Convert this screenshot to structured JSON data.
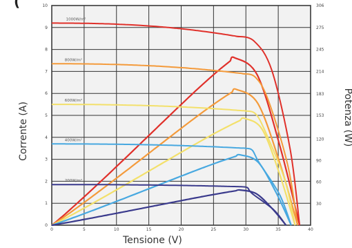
{
  "chart_data": {
    "type": "line",
    "title_fragment": "(",
    "xlabel": "Tensione (V)",
    "ylabel": "Corrente (A)",
    "y2label": "Potenza (W)",
    "xlim": [
      0,
      40
    ],
    "ylim": [
      0,
      10
    ],
    "y2lim": [
      0,
      306
    ],
    "x_ticks": [
      "0",
      "5",
      "10",
      "15",
      "20",
      "25",
      "30",
      "35",
      "40"
    ],
    "x_tick_values": [
      0,
      5,
      10,
      15,
      20,
      25,
      30,
      35,
      40
    ],
    "y_ticks": [
      "0",
      "1",
      "2",
      "3",
      "4",
      "5",
      "6",
      "7",
      "8",
      "9",
      "10"
    ],
    "y2_ticks": [
      "30",
      "60",
      "90",
      "120",
      "153",
      "183",
      "214",
      "245",
      "275",
      "306"
    ],
    "grid": true,
    "irradiance_labels": [
      "1000W/m²",
      "800W/m²",
      "600W/m²",
      "400W/m²",
      "200W/m²"
    ],
    "series": [
      {
        "label_index": 0,
        "color": "#e0302a",
        "isc": 9.2,
        "ix": 28.5,
        "im": 8.6,
        "vx": 34.0,
        "voc": 38.3,
        "pmax": 243
      },
      {
        "label_index": 1,
        "color": "#f49a3a",
        "isc": 7.35,
        "ix": 29.5,
        "im": 6.9,
        "vx": 33.5,
        "voc": 38.0,
        "pmax": 197
      },
      {
        "label_index": 2,
        "color": "#f3e06a",
        "isc": 5.5,
        "ix": 30.0,
        "im": 5.2,
        "vx": 33.0,
        "voc": 37.6,
        "pmax": 155
      },
      {
        "label_index": 3,
        "color": "#47a8e0",
        "isc": 3.7,
        "ix": 30.0,
        "im": 3.5,
        "vx": 32.0,
        "voc": 37.0,
        "pmax": 102
      },
      {
        "label_index": 4,
        "color": "#3a3a8c",
        "isc": 1.85,
        "ix": 29.5,
        "im": 1.75,
        "vx": 31.0,
        "voc": 36.2,
        "pmax": 51
      }
    ]
  }
}
